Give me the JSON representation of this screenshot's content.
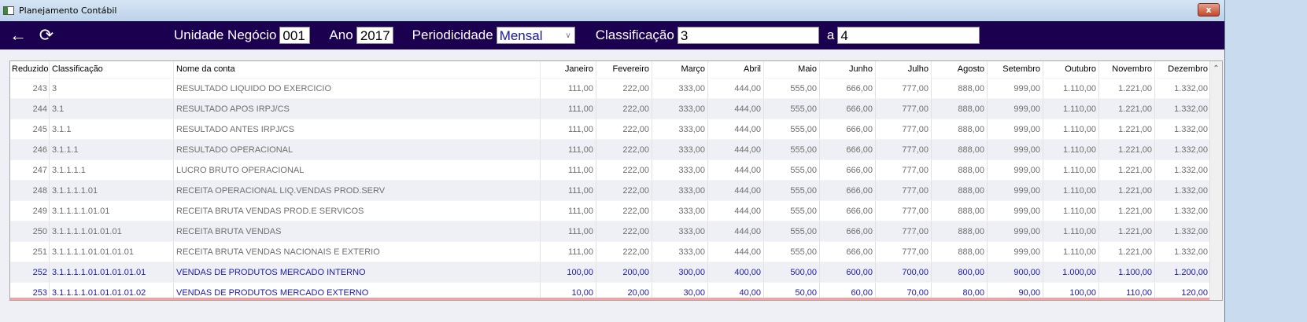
{
  "window": {
    "title": "Planejamento Contábil",
    "close_label": "x"
  },
  "toolbar": {
    "back_icon": "arrow-left-icon",
    "refresh_icon": "refresh-icon",
    "unidade_label": "Unidade Negócio",
    "unidade_value": "001",
    "ano_label": "Ano",
    "ano_value": "2017",
    "periodicidade_label": "Periodicidade",
    "periodicidade_value": "Mensal",
    "classificacao_label": "Classificação",
    "classificacao_from": "3",
    "a_label": "a",
    "classificacao_to": "4"
  },
  "table": {
    "headers": [
      "Reduzido",
      "Classificação",
      "Nome da conta",
      "Janeiro",
      "Fevereiro",
      "Março",
      "Abril",
      "Maio",
      "Junho",
      "Julho",
      "Agosto",
      "Setembro",
      "Outubro",
      "Novembro",
      "Dezembro"
    ],
    "rows": [
      [
        "243",
        "3",
        "RESULTADO LIQUIDO DO EXERCICIO",
        "111,00",
        "222,00",
        "333,00",
        "444,00",
        "555,00",
        "666,00",
        "777,00",
        "888,00",
        "999,00",
        "1.110,00",
        "1.221,00",
        "1.332,00"
      ],
      [
        "244",
        "3.1",
        "RESULTADO APOS IRPJ/CS",
        "111,00",
        "222,00",
        "333,00",
        "444,00",
        "555,00",
        "666,00",
        "777,00",
        "888,00",
        "999,00",
        "1.110,00",
        "1.221,00",
        "1.332,00"
      ],
      [
        "245",
        "3.1.1",
        "RESULTADO  ANTES IRPJ/CS",
        "111,00",
        "222,00",
        "333,00",
        "444,00",
        "555,00",
        "666,00",
        "777,00",
        "888,00",
        "999,00",
        "1.110,00",
        "1.221,00",
        "1.332,00"
      ],
      [
        "246",
        "3.1.1.1",
        "RESULTADO OPERACIONAL",
        "111,00",
        "222,00",
        "333,00",
        "444,00",
        "555,00",
        "666,00",
        "777,00",
        "888,00",
        "999,00",
        "1.110,00",
        "1.221,00",
        "1.332,00"
      ],
      [
        "247",
        "3.1.1.1.1",
        "LUCRO BRUTO OPERACIONAL",
        "111,00",
        "222,00",
        "333,00",
        "444,00",
        "555,00",
        "666,00",
        "777,00",
        "888,00",
        "999,00",
        "1.110,00",
        "1.221,00",
        "1.332,00"
      ],
      [
        "248",
        "3.1.1.1.1.01",
        "RECEITA OPERACIONAL LIQ.VENDAS PROD.SERV",
        "111,00",
        "222,00",
        "333,00",
        "444,00",
        "555,00",
        "666,00",
        "777,00",
        "888,00",
        "999,00",
        "1.110,00",
        "1.221,00",
        "1.332,00"
      ],
      [
        "249",
        "3.1.1.1.1.01.01",
        "RECEITA BRUTA VENDAS PROD.E SERVICOS",
        "111,00",
        "222,00",
        "333,00",
        "444,00",
        "555,00",
        "666,00",
        "777,00",
        "888,00",
        "999,00",
        "1.110,00",
        "1.221,00",
        "1.332,00"
      ],
      [
        "250",
        "3.1.1.1.1.01.01.01",
        "RECEITA BRUTA VENDAS",
        "111,00",
        "222,00",
        "333,00",
        "444,00",
        "555,00",
        "666,00",
        "777,00",
        "888,00",
        "999,00",
        "1.110,00",
        "1.221,00",
        "1.332,00"
      ],
      [
        "251",
        "3.1.1.1.1.01.01.01.01",
        "RECEITA BRUTA VENDAS NACIONAIS E EXTERIO",
        "111,00",
        "222,00",
        "333,00",
        "444,00",
        "555,00",
        "666,00",
        "777,00",
        "888,00",
        "999,00",
        "1.110,00",
        "1.221,00",
        "1.332,00"
      ],
      [
        "252",
        "3.1.1.1.1.01.01.01.01.01",
        "VENDAS DE PRODUTOS MERCADO INTERNO",
        "100,00",
        "200,00",
        "300,00",
        "400,00",
        "500,00",
        "600,00",
        "700,00",
        "800,00",
        "900,00",
        "1.000,00",
        "1.100,00",
        "1.200,00"
      ],
      [
        "253",
        "3.1.1.1.1.01.01.01.01.02",
        "VENDAS DE PRODUTOS MERCADO EXTERNO",
        "10,00",
        "20,00",
        "30,00",
        "40,00",
        "50,00",
        "60,00",
        "70,00",
        "80,00",
        "90,00",
        "100,00",
        "110,00",
        "120,00"
      ]
    ],
    "editable_row_color": "#1a1ab0"
  }
}
